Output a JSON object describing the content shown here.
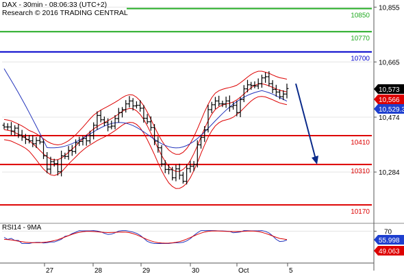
{
  "header": {
    "line1": "DAX - 30min - 08:06:33 (UTC+2)",
    "line2": "Research © 2016 TRADING CENTRAL"
  },
  "rsi_header": "RSI14 - 9MA",
  "colors": {
    "price_bars": "#000000",
    "bollinger_bands": "#dd0000",
    "moving_average": "#2233bb",
    "resistance_levels": "#22aa22",
    "pivot_level": "#0000cc",
    "support_levels": "#dd0000",
    "forecast_arrow": "#0a2a8a",
    "rsi_line": "#2233bb",
    "rsi_ma": "#dd0000",
    "last_price_badge": "#000000",
    "ma_badge": "#1e3fcf",
    "band_badge": "#dd0000"
  },
  "chart_data": [
    {
      "type": "ohlc",
      "title": "DAX - 30min",
      "y_ticks": [
        "10,855",
        "10,665",
        "10,474",
        "10,284"
      ],
      "ylim": [
        10095,
        10880
      ],
      "x_ticks": [
        "27",
        "28",
        "29",
        "30",
        "Oct",
        "5"
      ],
      "levels": [
        {
          "label": "10850",
          "value": 10850,
          "role": "resistance"
        },
        {
          "label": "10770",
          "value": 10770,
          "role": "resistance"
        },
        {
          "label": "10700",
          "value": 10700,
          "role": "pivot"
        },
        {
          "label": "10410",
          "value": 10410,
          "role": "support"
        },
        {
          "label": "10310",
          "value": 10310,
          "role": "support"
        },
        {
          "label": "10170",
          "value": 10170,
          "role": "support"
        }
      ],
      "badges": [
        {
          "label": "10,573",
          "role": "last_price"
        },
        {
          "label": "10,566",
          "role": "upper_band"
        },
        {
          "label": "10,529.3",
          "role": "moving_average"
        }
      ],
      "bar_count": 80,
      "closes": [
        10440,
        10440,
        10426,
        10436,
        10412,
        10405,
        10397,
        10392,
        10382,
        10393,
        10388,
        10340,
        10294,
        10320,
        10313,
        10285,
        10340,
        10338,
        10359,
        10355,
        10385,
        10390,
        10400,
        10392,
        10410,
        10446,
        10480,
        10465,
        10455,
        10440,
        10443,
        10469,
        10490,
        10500,
        10520,
        10530,
        10513,
        10515,
        10505,
        10470,
        10458,
        10438,
        10391,
        10368,
        10312,
        10293,
        10292,
        10264,
        10295,
        10273,
        10252,
        10296,
        10304,
        10310,
        10378,
        10404,
        10430,
        10500,
        10517,
        10530,
        10520,
        10520,
        10530,
        10510,
        10515,
        10490,
        10535,
        10572,
        10586,
        10584,
        10582,
        10590,
        10610,
        10614,
        10590,
        10570,
        10561,
        10545,
        10554,
        10573
      ],
      "moving_average_ends": {
        "start": 10642,
        "end": 10529.3
      },
      "forecast_arrow": {
        "from": 10590,
        "to": 10310
      },
      "panels": [
        "price",
        "rsi"
      ]
    },
    {
      "type": "line",
      "title": "RSI14 - 9MA",
      "y_ticks": [
        "70"
      ],
      "ylim": [
        20,
        80
      ],
      "series": [
        {
          "role": "rsi"
        },
        {
          "role": "rsi_ma"
        }
      ],
      "badges": [
        {
          "label": "55.998",
          "role": "rsi"
        },
        {
          "label": "49.063",
          "role": "rsi_ma"
        }
      ]
    }
  ]
}
